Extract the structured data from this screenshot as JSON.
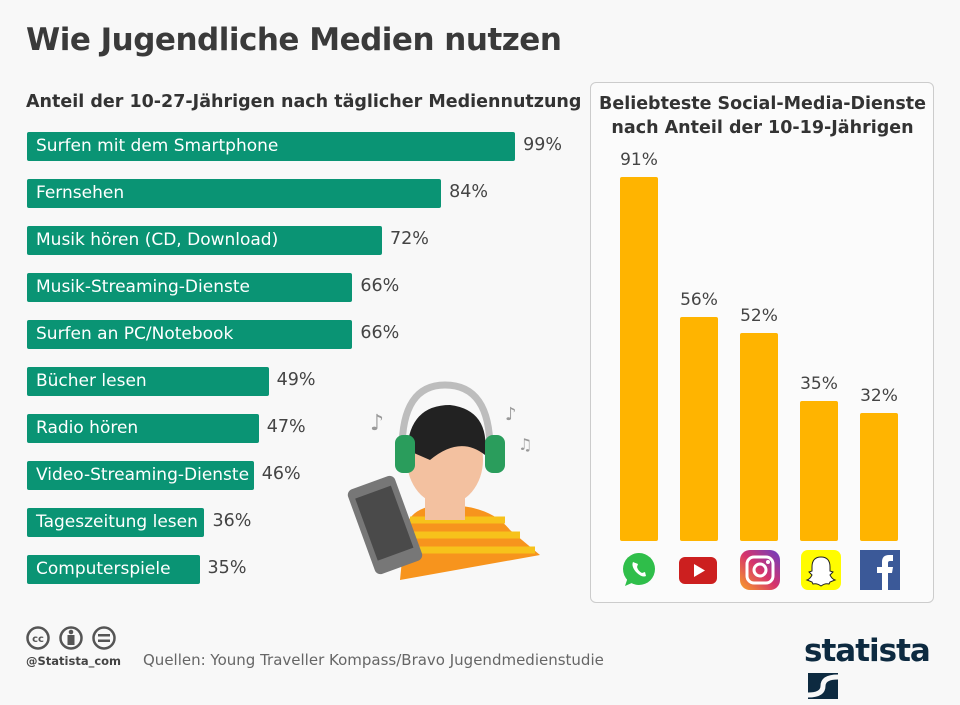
{
  "title": "Wie Jugendliche Medien nutzen",
  "colors": {
    "left_bars": "#0a9474",
    "right_bars": "#ffb400",
    "background": "#f8f8f8"
  },
  "chart_data": [
    {
      "type": "bar",
      "orientation": "horizontal",
      "title": "Anteil der 10-27-Jährigen nach täglicher Mediennutzung",
      "unit": "%",
      "categories": [
        "Surfen mit dem Smartphone",
        "Fernsehen",
        "Musik hören (CD, Download)",
        "Musik-Streaming-Dienste",
        "Surfen an PC/Notebook",
        "Bücher lesen",
        "Radio hören",
        "Video-Streaming-Dienste",
        "Tageszeitung lesen",
        "Computerspiele"
      ],
      "values": [
        99,
        84,
        72,
        66,
        66,
        49,
        47,
        46,
        36,
        35
      ],
      "labels": [
        "99%",
        "84%",
        "72%",
        "66%",
        "66%",
        "49%",
        "47%",
        "46%",
        "36%",
        "35%"
      ]
    },
    {
      "type": "bar",
      "orientation": "vertical",
      "title": "Beliebteste Social-Media-Dienste nach Anteil der 10-19-Jährigen",
      "unit": "%",
      "categories": [
        "WhatsApp",
        "YouTube",
        "Instagram",
        "Snapchat",
        "Facebook"
      ],
      "category_icons": [
        "whatsapp-icon",
        "youtube-icon",
        "instagram-icon",
        "snapchat-icon",
        "facebook-icon"
      ],
      "values": [
        91,
        56,
        52,
        35,
        32
      ],
      "labels": [
        "91%",
        "56%",
        "52%",
        "35%",
        "32%"
      ]
    }
  ],
  "footer": {
    "handle": "@Statista_com",
    "source": "Quellen: Young Traveller Kompass/Bravo Jugendmedienstudie",
    "logo": "statista"
  }
}
